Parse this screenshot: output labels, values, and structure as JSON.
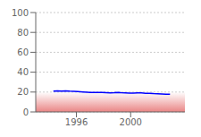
{
  "chart_data": {
    "type": "line",
    "x": [
      1994.3,
      1994.6,
      1994.9,
      1995.2,
      1995.5,
      1995.8,
      1996.1,
      1996.3,
      1996.5,
      1996.8,
      1997.0,
      1997.3,
      1997.6,
      1997.9,
      1998.2,
      1998.5,
      1998.8,
      1999.0,
      1999.3,
      1999.6,
      1999.9,
      2000.2,
      2000.5,
      2000.8,
      2001.1,
      2001.4,
      2001.7,
      2002.0,
      2002.3,
      2002.6,
      2002.9
    ],
    "values": [
      21.0,
      21.2,
      21.0,
      21.1,
      20.9,
      20.8,
      20.5,
      20.3,
      20.1,
      19.8,
      19.6,
      19.5,
      19.7,
      19.6,
      19.4,
      19.2,
      19.3,
      19.5,
      19.3,
      19.2,
      19.0,
      18.9,
      19.1,
      19.2,
      18.8,
      18.6,
      18.4,
      18.3,
      18.1,
      17.9,
      17.8
    ],
    "color": "blue",
    "xlim": [
      1993,
      2004
    ],
    "ylim": [
      0,
      100
    ],
    "xticks": [
      1996,
      2000
    ],
    "yticks": [
      0,
      20,
      40,
      60,
      80,
      100
    ],
    "grid": true,
    "band": {
      "from": 0,
      "to": 20,
      "color": "#e05050"
    }
  }
}
